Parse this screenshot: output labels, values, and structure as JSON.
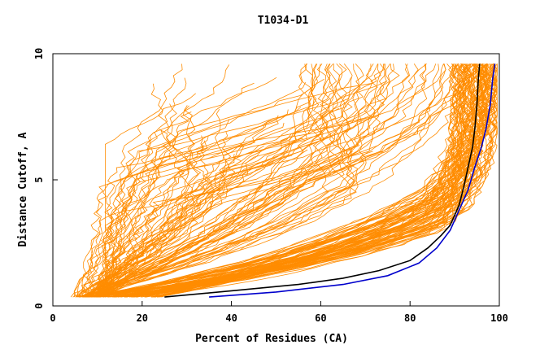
{
  "chart_data": {
    "type": "line",
    "title": "T1034-D1",
    "xlabel": "Percent of Residues (CA)",
    "ylabel": "Distance Cutoff, A",
    "xlim": [
      0,
      100
    ],
    "ylim": [
      0,
      10
    ],
    "x_ticks": [
      "0",
      "20",
      "40",
      "60",
      "80",
      "100"
    ],
    "y_ticks": [
      "0",
      "5",
      "10"
    ],
    "grid": false,
    "legend": "none",
    "colors": {
      "background_models": "#ff8c00",
      "black_model": "#000000",
      "blue_model": "#0000cc",
      "axes": "#000000"
    },
    "series": [
      {
        "color": "black",
        "points": [
          [
            25,
            0.35
          ],
          [
            40,
            0.6
          ],
          [
            55,
            0.85
          ],
          [
            65,
            1.1
          ],
          [
            73,
            1.4
          ],
          [
            80,
            1.8
          ],
          [
            84,
            2.3
          ],
          [
            87,
            2.8
          ],
          [
            89,
            3.2
          ],
          [
            91,
            4.0
          ],
          [
            92,
            4.7
          ],
          [
            93,
            5.5
          ],
          [
            94,
            6.3
          ],
          [
            94.5,
            7.0
          ],
          [
            95,
            8.0
          ],
          [
            95.3,
            9.0
          ],
          [
            95.6,
            9.6
          ]
        ]
      },
      {
        "color": "blue",
        "points": [
          [
            35,
            0.35
          ],
          [
            50,
            0.55
          ],
          [
            65,
            0.85
          ],
          [
            75,
            1.2
          ],
          [
            82,
            1.7
          ],
          [
            86,
            2.3
          ],
          [
            89,
            3.0
          ],
          [
            91,
            3.8
          ],
          [
            93,
            4.6
          ],
          [
            94.5,
            5.5
          ],
          [
            96,
            6.3
          ],
          [
            97,
            7.0
          ],
          [
            98,
            8.0
          ],
          [
            98.5,
            9.0
          ],
          [
            99,
            9.6
          ]
        ]
      }
    ]
  }
}
